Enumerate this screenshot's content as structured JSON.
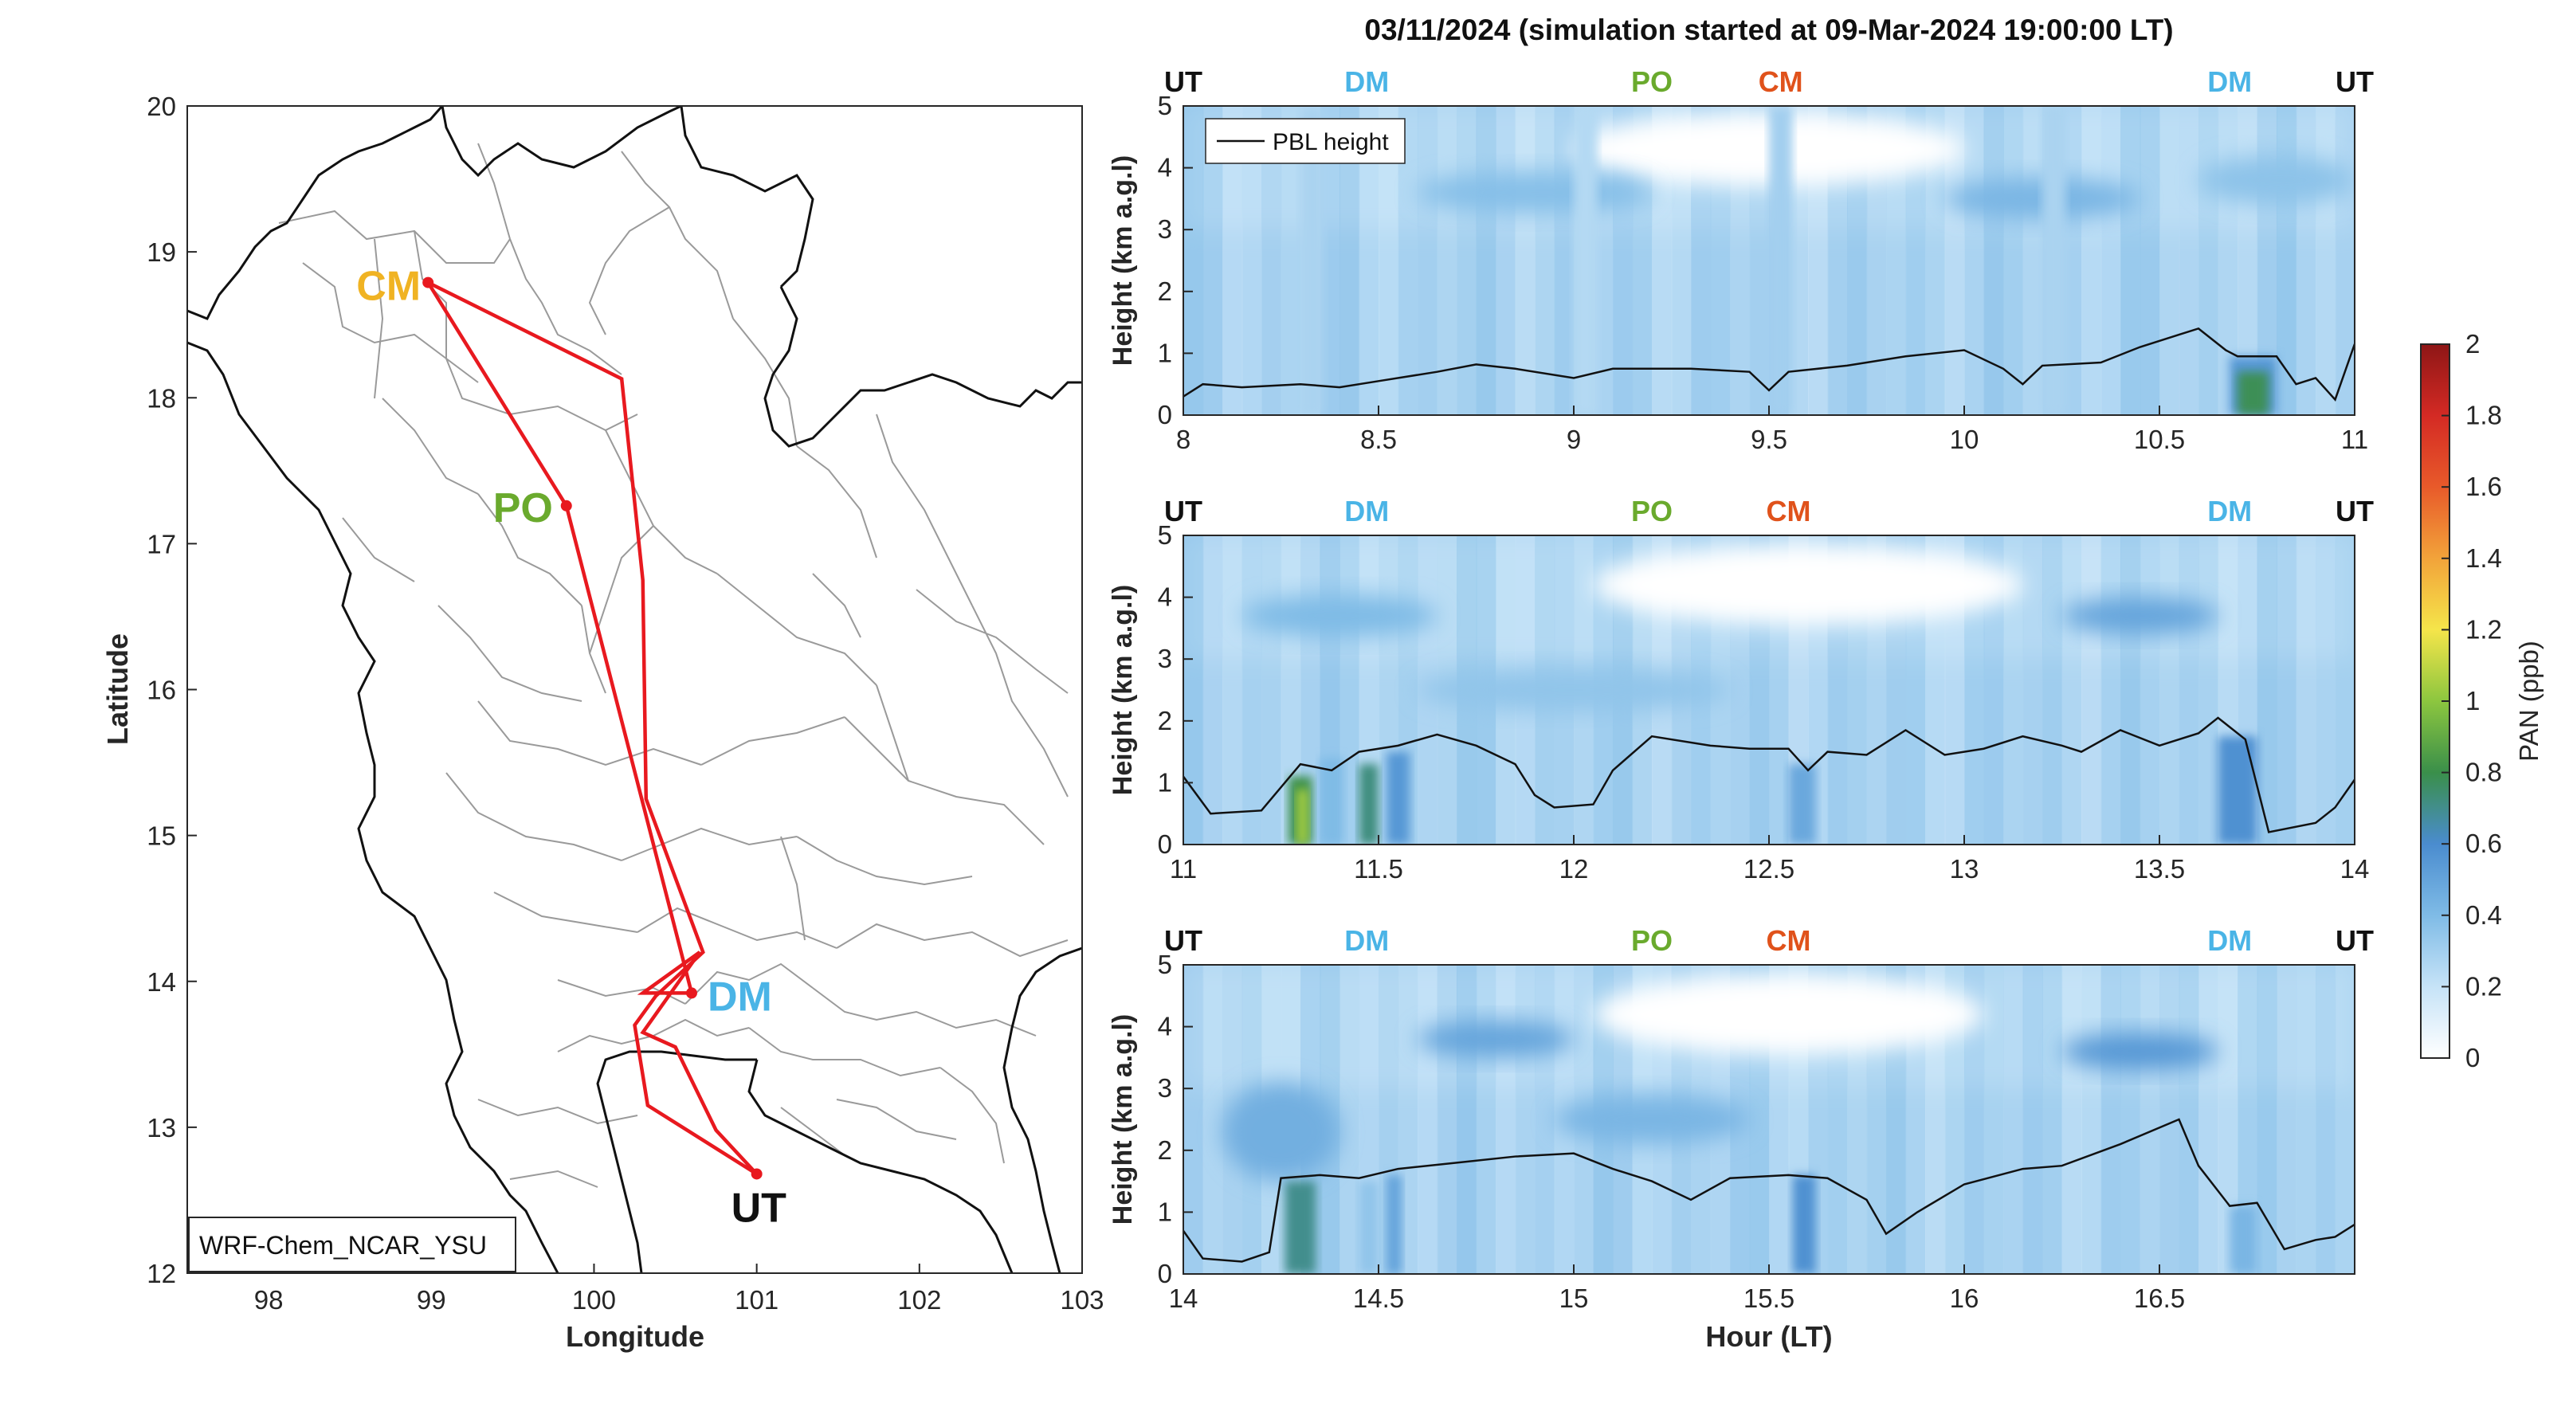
{
  "figure_title": "03/11/2024 (simulation started at 09-Mar-2024 19:00:00 LT)",
  "colors": {
    "route": "#e8191f",
    "pbl": "#111111",
    "border": "#111111",
    "province": "#9a9a9a",
    "CM": "#f0b323",
    "PO": "#6aaa2d",
    "DM": "#4ab4e6",
    "UT": "#111111",
    "CM_top": "#e0521b"
  },
  "chart_data": [
    {
      "type": "map",
      "xlabel": "Longitude",
      "ylabel": "Latitude",
      "xlim": [
        97.5,
        103
      ],
      "ylim": [
        12,
        20
      ],
      "xticks": [
        "98",
        "99",
        "100",
        "101",
        "102",
        "103"
      ],
      "yticks": [
        "12",
        "13",
        "14",
        "15",
        "16",
        "17",
        "18",
        "19",
        "20"
      ],
      "annotation": "WRF-Chem_NCAR_YSU",
      "sites": [
        {
          "name": "CM",
          "lon": 98.98,
          "lat": 18.79
        },
        {
          "name": "PO",
          "lon": 99.83,
          "lat": 17.26
        },
        {
          "name": "DM",
          "lon": 100.6,
          "lat": 13.92
        },
        {
          "name": "UT",
          "lon": 101.0,
          "lat": 12.68
        }
      ],
      "route_outbound": [
        [
          101.0,
          12.68
        ],
        [
          100.75,
          12.98
        ],
        [
          100.5,
          13.55
        ],
        [
          100.3,
          13.65
        ],
        [
          100.65,
          14.2
        ],
        [
          100.3,
          13.92
        ],
        [
          100.6,
          13.92
        ],
        [
          99.83,
          17.26
        ],
        [
          98.98,
          18.79
        ]
      ],
      "route_return": [
        [
          98.98,
          18.79
        ],
        [
          100.17,
          18.13
        ],
        [
          100.3,
          16.75
        ],
        [
          100.32,
          15.25
        ],
        [
          100.67,
          14.2
        ],
        [
          100.38,
          13.9
        ],
        [
          100.25,
          13.7
        ],
        [
          100.33,
          13.15
        ],
        [
          101.0,
          12.68
        ]
      ]
    },
    {
      "type": "heatmap",
      "ylabel": "Height (km a.g.l)",
      "xlim": [
        8,
        11
      ],
      "ylim": [
        0,
        5
      ],
      "xticks": [
        "8",
        "8.5",
        "9",
        "9.5",
        "10",
        "10.5",
        "11"
      ],
      "yticks": [
        "0",
        "1",
        "2",
        "3",
        "4",
        "5"
      ],
      "legend": "PBL height",
      "site_labels": [
        {
          "text": "UT",
          "x": 8
        },
        {
          "text": "DM",
          "x": 8.47
        },
        {
          "text": "PO",
          "x": 9.2
        },
        {
          "text": "CM",
          "x": 9.53
        },
        {
          "text": "DM",
          "x": 10.68
        },
        {
          "text": "UT",
          "x": 11
        }
      ],
      "pbl": [
        [
          8,
          0.3
        ],
        [
          8.05,
          0.5
        ],
        [
          8.15,
          0.45
        ],
        [
          8.3,
          0.5
        ],
        [
          8.4,
          0.45
        ],
        [
          8.5,
          0.55
        ],
        [
          8.65,
          0.7
        ],
        [
          8.75,
          0.82
        ],
        [
          8.85,
          0.75
        ],
        [
          9.0,
          0.6
        ],
        [
          9.1,
          0.75
        ],
        [
          9.3,
          0.75
        ],
        [
          9.45,
          0.7
        ],
        [
          9.5,
          0.4
        ],
        [
          9.55,
          0.7
        ],
        [
          9.7,
          0.8
        ],
        [
          9.85,
          0.95
        ],
        [
          10.0,
          1.05
        ],
        [
          10.1,
          0.75
        ],
        [
          10.15,
          0.5
        ],
        [
          10.2,
          0.8
        ],
        [
          10.35,
          0.85
        ],
        [
          10.45,
          1.1
        ],
        [
          10.55,
          1.3
        ],
        [
          10.6,
          1.4
        ],
        [
          10.67,
          1.05
        ],
        [
          10.7,
          0.95
        ],
        [
          10.8,
          0.95
        ],
        [
          10.85,
          0.5
        ],
        [
          10.9,
          0.6
        ],
        [
          10.95,
          0.25
        ],
        [
          11,
          1.15
        ]
      ],
      "columns": [
        {
          "x0": 8.3,
          "x1": 8.36,
          "ppb": 0.28
        },
        {
          "x0": 9.0,
          "x1": 9.06,
          "ppb": 0.25
        },
        {
          "x0": 9.5,
          "x1": 9.56,
          "ppb": 0.3
        },
        {
          "x0": 10.2,
          "x1": 10.26,
          "ppb": 0.28
        },
        {
          "x0": 10.68,
          "x1": 10.8,
          "ppb": 0.55,
          "ymax": 0.95
        },
        {
          "x0": 10.7,
          "x1": 10.78,
          "ppb": 0.78,
          "ymax": 0.7
        }
      ],
      "blobs": [
        {
          "x": 9.5,
          "y": 4.3,
          "rx": 0.5,
          "ry": 0.6,
          "ppb": 0.0
        },
        {
          "x": 8.9,
          "y": 3.6,
          "rx": 0.3,
          "ry": 0.35,
          "ppb": 0.38
        },
        {
          "x": 10.2,
          "y": 3.5,
          "rx": 0.25,
          "ry": 0.35,
          "ppb": 0.42
        },
        {
          "x": 10.8,
          "y": 3.8,
          "rx": 0.2,
          "ry": 0.4,
          "ppb": 0.36
        }
      ]
    },
    {
      "type": "heatmap",
      "ylabel": "Height (km a.g.l)",
      "xlim": [
        11,
        14
      ],
      "ylim": [
        0,
        5
      ],
      "xticks": [
        "11",
        "11.5",
        "12",
        "12.5",
        "13",
        "13.5",
        "14"
      ],
      "yticks": [
        "0",
        "1",
        "2",
        "3",
        "4",
        "5"
      ],
      "site_labels": [
        {
          "text": "UT",
          "x": 11
        },
        {
          "text": "DM",
          "x": 11.47
        },
        {
          "text": "PO",
          "x": 12.2
        },
        {
          "text": "CM",
          "x": 12.55
        },
        {
          "text": "DM",
          "x": 13.68
        },
        {
          "text": "UT",
          "x": 14
        }
      ],
      "pbl": [
        [
          11,
          1.1
        ],
        [
          11.07,
          0.5
        ],
        [
          11.2,
          0.55
        ],
        [
          11.3,
          1.3
        ],
        [
          11.38,
          1.2
        ],
        [
          11.45,
          1.5
        ],
        [
          11.55,
          1.6
        ],
        [
          11.65,
          1.78
        ],
        [
          11.75,
          1.6
        ],
        [
          11.85,
          1.3
        ],
        [
          11.9,
          0.8
        ],
        [
          11.95,
          0.6
        ],
        [
          12.05,
          0.65
        ],
        [
          12.1,
          1.2
        ],
        [
          12.2,
          1.75
        ],
        [
          12.35,
          1.6
        ],
        [
          12.45,
          1.55
        ],
        [
          12.55,
          1.55
        ],
        [
          12.6,
          1.2
        ],
        [
          12.65,
          1.5
        ],
        [
          12.75,
          1.45
        ],
        [
          12.85,
          1.85
        ],
        [
          12.95,
          1.45
        ],
        [
          13.05,
          1.55
        ],
        [
          13.15,
          1.75
        ],
        [
          13.25,
          1.6
        ],
        [
          13.3,
          1.5
        ],
        [
          13.4,
          1.85
        ],
        [
          13.5,
          1.6
        ],
        [
          13.6,
          1.8
        ],
        [
          13.65,
          2.05
        ],
        [
          13.72,
          1.7
        ],
        [
          13.78,
          0.2
        ],
        [
          13.9,
          0.35
        ],
        [
          13.95,
          0.6
        ],
        [
          14,
          1.05
        ]
      ],
      "columns": [
        {
          "x0": 11.27,
          "x1": 11.33,
          "ppb": 0.8,
          "ymax": 1.1
        },
        {
          "x0": 11.29,
          "x1": 11.32,
          "ppb": 1.05,
          "ymax": 0.9
        },
        {
          "x0": 11.45,
          "x1": 11.5,
          "ppb": 0.72,
          "ymax": 1.3
        },
        {
          "x0": 11.52,
          "x1": 11.58,
          "ppb": 0.55,
          "ymax": 1.5
        },
        {
          "x0": 11.35,
          "x1": 11.41,
          "ppb": 0.4,
          "ymax": 1.4
        },
        {
          "x0": 12.55,
          "x1": 12.62,
          "ppb": 0.48,
          "ymax": 1.3
        },
        {
          "x0": 13.65,
          "x1": 13.75,
          "ppb": 0.58,
          "ymax": 1.75
        }
      ],
      "blobs": [
        {
          "x": 12.6,
          "y": 4.2,
          "rx": 0.55,
          "ry": 0.65,
          "ppb": 0.0
        },
        {
          "x": 11.4,
          "y": 3.7,
          "rx": 0.25,
          "ry": 0.35,
          "ppb": 0.4
        },
        {
          "x": 13.45,
          "y": 3.7,
          "rx": 0.2,
          "ry": 0.3,
          "ppb": 0.5
        },
        {
          "x": 12.0,
          "y": 2.5,
          "rx": 0.4,
          "ry": 0.35,
          "ppb": 0.35
        }
      ]
    },
    {
      "type": "heatmap",
      "ylabel": "Height (km a.g.l)",
      "xlabel": "Hour (LT)",
      "xlim": [
        14,
        17
      ],
      "ylim": [
        0,
        5
      ],
      "xticks": [
        "14",
        "14.5",
        "15",
        "15.5",
        "16",
        "16.5"
      ],
      "yticks": [
        "0",
        "1",
        "2",
        "3",
        "4",
        "5"
      ],
      "site_labels": [
        {
          "text": "UT",
          "x": 14
        },
        {
          "text": "DM",
          "x": 14.47
        },
        {
          "text": "PO",
          "x": 15.2
        },
        {
          "text": "CM",
          "x": 15.55
        },
        {
          "text": "DM",
          "x": 16.68
        },
        {
          "text": "UT",
          "x": 17
        }
      ],
      "pbl": [
        [
          14,
          0.7
        ],
        [
          14.05,
          0.25
        ],
        [
          14.15,
          0.2
        ],
        [
          14.22,
          0.35
        ],
        [
          14.25,
          1.55
        ],
        [
          14.35,
          1.6
        ],
        [
          14.45,
          1.55
        ],
        [
          14.55,
          1.7
        ],
        [
          14.7,
          1.8
        ],
        [
          14.85,
          1.9
        ],
        [
          15.0,
          1.95
        ],
        [
          15.1,
          1.7
        ],
        [
          15.2,
          1.5
        ],
        [
          15.3,
          1.2
        ],
        [
          15.4,
          1.55
        ],
        [
          15.55,
          1.6
        ],
        [
          15.65,
          1.55
        ],
        [
          15.75,
          1.2
        ],
        [
          15.8,
          0.65
        ],
        [
          15.88,
          1.0
        ],
        [
          16.0,
          1.45
        ],
        [
          16.15,
          1.7
        ],
        [
          16.25,
          1.75
        ],
        [
          16.4,
          2.1
        ],
        [
          16.55,
          2.5
        ],
        [
          16.6,
          1.75
        ],
        [
          16.68,
          1.1
        ],
        [
          16.75,
          1.15
        ],
        [
          16.82,
          0.4
        ],
        [
          16.9,
          0.55
        ],
        [
          16.95,
          0.6
        ],
        [
          17,
          0.8
        ]
      ],
      "columns": [
        {
          "x0": 14.26,
          "x1": 14.34,
          "ppb": 0.7,
          "ymax": 1.5
        },
        {
          "x0": 14.45,
          "x1": 14.5,
          "ppb": 0.35,
          "ymax": 1.5
        },
        {
          "x0": 14.52,
          "x1": 14.56,
          "ppb": 0.5,
          "ymax": 1.6
        },
        {
          "x0": 15.56,
          "x1": 15.62,
          "ppb": 0.58,
          "ymax": 1.6
        },
        {
          "x0": 16.68,
          "x1": 16.75,
          "ppb": 0.42,
          "ymax": 1.1
        }
      ],
      "blobs": [
        {
          "x": 15.55,
          "y": 4.2,
          "rx": 0.5,
          "ry": 0.65,
          "ppb": 0.0
        },
        {
          "x": 14.8,
          "y": 3.8,
          "rx": 0.2,
          "ry": 0.3,
          "ppb": 0.5
        },
        {
          "x": 16.45,
          "y": 3.6,
          "rx": 0.2,
          "ry": 0.3,
          "ppb": 0.55
        },
        {
          "x": 15.2,
          "y": 2.5,
          "rx": 0.25,
          "ry": 0.4,
          "ppb": 0.42
        },
        {
          "x": 14.25,
          "y": 2.3,
          "rx": 0.15,
          "ry": 0.8,
          "ppb": 0.45
        }
      ]
    },
    {
      "type": "colorbar",
      "label": "PAN (ppb)",
      "range": [
        0,
        2
      ],
      "ticks": [
        "0",
        "0.2",
        "0.4",
        "0.6",
        "0.8",
        "1",
        "1.2",
        "1.4",
        "1.6",
        "1.8",
        "2"
      ]
    }
  ]
}
